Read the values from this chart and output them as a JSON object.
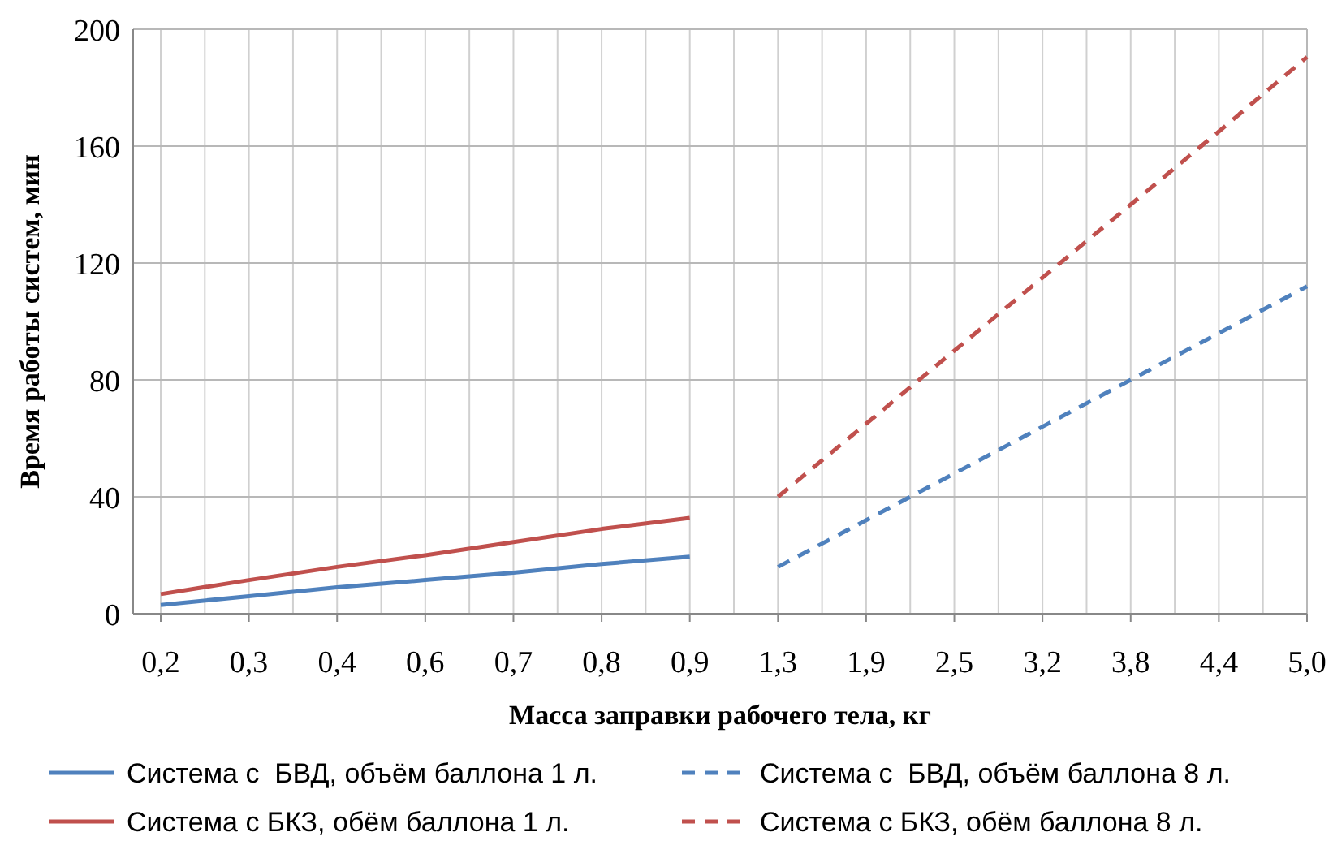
{
  "chart_data": {
    "type": "line",
    "xlabel": "Масса заправки рабочего тела, кг",
    "ylabel": "Время работы систем, мин",
    "categories": [
      "0,2",
      "0,3",
      "0,4",
      "0,6",
      "0,7",
      "0,8",
      "0,9",
      "1,3",
      "1,9",
      "2,5",
      "3,2",
      "3,8",
      "4,4",
      "5,0"
    ],
    "ylim": [
      0,
      200
    ],
    "yticks": [
      0,
      40,
      80,
      120,
      160,
      200
    ],
    "grid": true,
    "legend": "bottom",
    "series": [
      {
        "name": "Система с  БВД, объём баллона 1 л.",
        "color": "#4f81bd",
        "line_style": "solid",
        "values": [
          3,
          6,
          9,
          11.5,
          14,
          17,
          19.5,
          null,
          null,
          null,
          null,
          null,
          null,
          null
        ]
      },
      {
        "name": "Система с БКЗ, обём баллона 1 л.",
        "color": "#c0504d",
        "line_style": "solid",
        "values": [
          6.7,
          11.5,
          16,
          20,
          24.5,
          29,
          32.8,
          null,
          null,
          null,
          null,
          null,
          null,
          null
        ]
      },
      {
        "name": "Система с  БВД, объём баллона 8 л.",
        "color": "#4f81bd",
        "line_style": "dashed",
        "values": [
          null,
          null,
          null,
          null,
          null,
          null,
          null,
          16,
          32,
          48,
          64,
          80,
          96,
          112
        ]
      },
      {
        "name": "Система с БКЗ, обём баллона 8 л.",
        "color": "#c0504d",
        "line_style": "dashed",
        "values": [
          null,
          null,
          null,
          null,
          null,
          null,
          null,
          40,
          65,
          90,
          115,
          140,
          165,
          190.5
        ]
      }
    ]
  }
}
